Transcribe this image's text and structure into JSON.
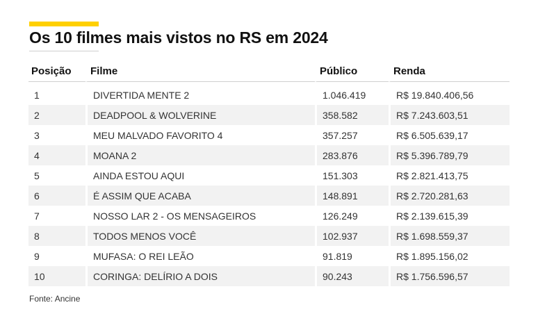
{
  "title": "Os 10 filmes mais vistos no RS em 2024",
  "colors": {
    "accent": "#ffd000",
    "stripe": "#f2f2f2"
  },
  "table": {
    "headers": [
      "Posição",
      "Filme",
      "Público",
      "Renda"
    ],
    "rows": [
      [
        "1",
        "DIVERTIDA MENTE 2",
        "1.046.419",
        "R$ 19.840.406,56"
      ],
      [
        "2",
        "DEADPOOL & WOLVERINE",
        "358.582",
        "R$ 7.243.603,51"
      ],
      [
        "3",
        "MEU MALVADO FAVORITO 4",
        "357.257",
        "R$ 6.505.639,17"
      ],
      [
        "4",
        "MOANA 2",
        "283.876",
        "R$ 5.396.789,79"
      ],
      [
        "5",
        "AINDA ESTOU AQUI",
        "151.303",
        "R$ 2.821.413,75"
      ],
      [
        "6",
        "É ASSIM QUE ACABA",
        "148.891",
        "R$ 2.720.281,63"
      ],
      [
        "7",
        "NOSSO LAR 2 - OS MENSAGEIROS",
        "126.249",
        "R$ 2.139.615,39"
      ],
      [
        "8",
        "TODOS MENOS VOCÊ",
        "102.937",
        "R$ 1.698.559,37"
      ],
      [
        "9",
        "MUFASA: O REI LEÃO",
        "91.819",
        "R$ 1.895.156,02"
      ],
      [
        "10",
        "CORINGA: DELÍRIO A DOIS",
        "90.243",
        "R$ 1.756.596,57"
      ]
    ]
  },
  "source": "Fonte: Ancine"
}
